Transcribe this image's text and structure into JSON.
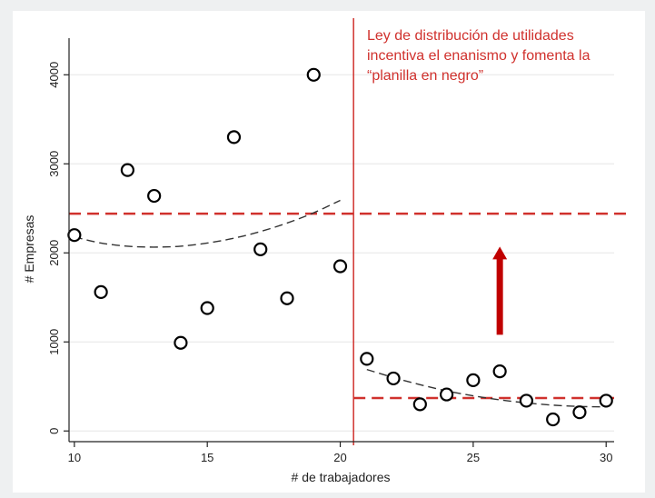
{
  "chart_data": {
    "type": "scatter",
    "title": "",
    "xlabel": "# de trabajadores",
    "ylabel": "# Empresas",
    "xlim": [
      9.8,
      30.3
    ],
    "ylim": [
      -120,
      4350
    ],
    "xticks": [
      10,
      15,
      20,
      25,
      30
    ],
    "yticks": [
      0,
      1000,
      2000,
      3000,
      4000
    ],
    "grid": true,
    "points": [
      {
        "x": 10,
        "y": 2200
      },
      {
        "x": 11,
        "y": 1560
      },
      {
        "x": 12,
        "y": 2930
      },
      {
        "x": 13,
        "y": 2640
      },
      {
        "x": 14,
        "y": 990
      },
      {
        "x": 15,
        "y": 1380
      },
      {
        "x": 16,
        "y": 3300
      },
      {
        "x": 17,
        "y": 2040
      },
      {
        "x": 18,
        "y": 1490
      },
      {
        "x": 19,
        "y": 4000
      },
      {
        "x": 20,
        "y": 1850
      },
      {
        "x": 21,
        "y": 810
      },
      {
        "x": 22,
        "y": 590
      },
      {
        "x": 23,
        "y": 300
      },
      {
        "x": 24,
        "y": 410
      },
      {
        "x": 25,
        "y": 570
      },
      {
        "x": 26,
        "y": 670
      },
      {
        "x": 27,
        "y": 340
      },
      {
        "x": 28,
        "y": 130
      },
      {
        "x": 29,
        "y": 210
      },
      {
        "x": 30,
        "y": 340
      }
    ],
    "fit_left": [
      {
        "x": 10,
        "y": 2180
      },
      {
        "x": 11,
        "y": 2110
      },
      {
        "x": 12,
        "y": 2075
      },
      {
        "x": 13,
        "y": 2065
      },
      {
        "x": 14,
        "y": 2075
      },
      {
        "x": 15,
        "y": 2110
      },
      {
        "x": 16,
        "y": 2165
      },
      {
        "x": 17,
        "y": 2240
      },
      {
        "x": 18,
        "y": 2335
      },
      {
        "x": 19,
        "y": 2450
      },
      {
        "x": 20,
        "y": 2590
      }
    ],
    "fit_right": [
      {
        "x": 21,
        "y": 690
      },
      {
        "x": 22,
        "y": 600
      },
      {
        "x": 23,
        "y": 520
      },
      {
        "x": 24,
        "y": 450
      },
      {
        "x": 25,
        "y": 395
      },
      {
        "x": 26,
        "y": 350
      },
      {
        "x": 27,
        "y": 315
      },
      {
        "x": 28,
        "y": 290
      },
      {
        "x": 29,
        "y": 275
      },
      {
        "x": 30,
        "y": 270
      }
    ],
    "threshold_x": 20.5,
    "mean_left": 2440,
    "mean_right": 370,
    "arrow": {
      "x": 26,
      "y_from": 1080,
      "y_to": 2050
    },
    "annotation": {
      "lines": [
        "Ley de distribución de utilidades",
        "incentiva el enanismo y fomenta la",
        "“planilla en negro”"
      ]
    },
    "colors": {
      "accent": "#d0312d",
      "arrow": "#c00000",
      "marker": "#000000",
      "fit": "#333333",
      "grid": "#e6e6e6"
    }
  }
}
